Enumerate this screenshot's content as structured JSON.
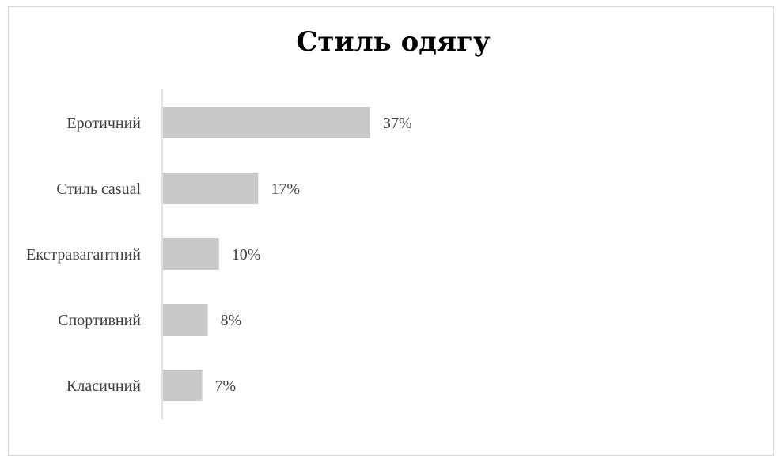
{
  "chart_data": {
    "type": "bar",
    "orientation": "horizontal",
    "title": "Стиль одягу",
    "categories": [
      "Еротичний",
      "Стиль casual",
      "Екстравагантний",
      "Спортивний",
      "Класичний"
    ],
    "values": [
      37,
      17,
      10,
      8,
      7
    ],
    "value_labels": [
      "37%",
      "17%",
      "10%",
      "8%",
      "7%"
    ],
    "xlabel": "",
    "ylabel": "",
    "grid": false,
    "legend": "none",
    "colors": {
      "bar": "#c9c9c9",
      "axis": "#d9d9d9",
      "text": "#404040",
      "title": "#000000"
    }
  }
}
